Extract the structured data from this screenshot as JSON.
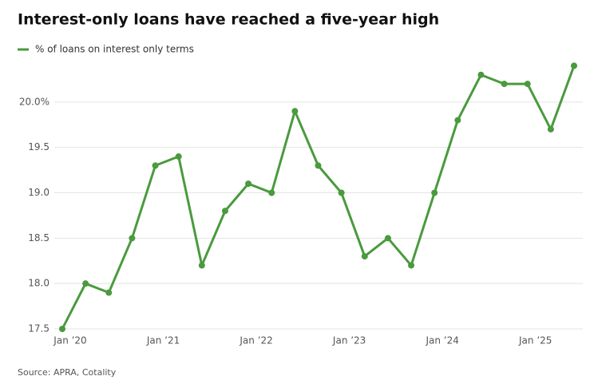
{
  "chart_data": {
    "type": "line",
    "title": "Interest-only loans have reached a five-year high",
    "source": "Source: APRA, Cotality",
    "categories": [
      "Jan ’20",
      null,
      null,
      null,
      "Jan ’21",
      null,
      null,
      null,
      "Jan ’22",
      null,
      null,
      null,
      "Jan ’23",
      null,
      null,
      null,
      "Jan ’24",
      null,
      null,
      null,
      "Jan ’25",
      null,
      null
    ],
    "series": [
      {
        "name": "% of loans on interest only terms",
        "color": "#4a9a3e",
        "values": [
          17.5,
          18.0,
          17.9,
          18.5,
          19.3,
          19.4,
          18.2,
          18.8,
          19.1,
          19.0,
          19.9,
          19.3,
          19.0,
          18.3,
          18.5,
          18.2,
          19.0,
          19.8,
          20.3,
          20.2,
          20.2,
          19.7,
          20.4
        ]
      }
    ],
    "ylim": [
      17.5,
      20.5
    ],
    "yticks": [
      17.5,
      {
        "value": 18,
        "label": "18.0"
      },
      18.5,
      {
        "value": 19,
        "label": "19.0"
      },
      19.5,
      {
        "value": 20,
        "label": "20.0%"
      }
    ],
    "grid": true
  }
}
